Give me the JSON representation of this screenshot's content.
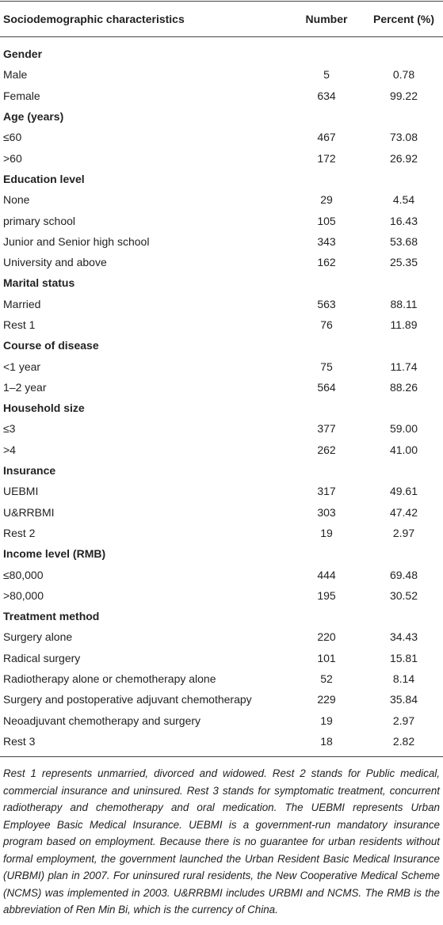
{
  "table": {
    "header": [
      "Sociodemographic characteristics",
      "Number",
      "Percent (%)"
    ],
    "sections": [
      {
        "title": "Gender",
        "rows": [
          [
            "Male",
            "5",
            "0.78"
          ],
          [
            "Female",
            "634",
            "99.22"
          ]
        ]
      },
      {
        "title": "Age (years)",
        "rows": [
          [
            "≤60",
            "467",
            "73.08"
          ],
          [
            ">60",
            "172",
            "26.92"
          ]
        ]
      },
      {
        "title": "Education level",
        "rows": [
          [
            "None",
            "29",
            "4.54"
          ],
          [
            "primary school",
            "105",
            "16.43"
          ],
          [
            "Junior and Senior high school",
            "343",
            "53.68"
          ],
          [
            "University and above",
            "162",
            "25.35"
          ]
        ]
      },
      {
        "title": "Marital status",
        "rows": [
          [
            "Married",
            "563",
            "88.11"
          ],
          [
            "Rest 1",
            "76",
            "11.89"
          ]
        ]
      },
      {
        "title": "Course of disease",
        "rows": [
          [
            "<1 year",
            "75",
            "11.74"
          ],
          [
            "1–2 year",
            "564",
            "88.26"
          ]
        ]
      },
      {
        "title": "Household size",
        "rows": [
          [
            "≤3",
            "377",
            "59.00"
          ],
          [
            ">4",
            "262",
            "41.00"
          ]
        ]
      },
      {
        "title": "Insurance",
        "rows": [
          [
            "UEBMI",
            "317",
            "49.61"
          ],
          [
            "U&RRBMI",
            "303",
            "47.42"
          ],
          [
            "Rest 2",
            "19",
            "2.97"
          ]
        ]
      },
      {
        "title": "Income level (RMB)",
        "rows": [
          [
            "≤80,000",
            "444",
            "69.48"
          ],
          [
            ">80,000",
            "195",
            "30.52"
          ]
        ]
      },
      {
        "title": "Treatment method",
        "rows": [
          [
            "Surgery alone",
            "220",
            "34.43"
          ],
          [
            "Radical surgery",
            "101",
            "15.81"
          ],
          [
            "Radiotherapy alone or chemotherapy alone",
            "52",
            "8.14"
          ],
          [
            "Surgery and postoperative adjuvant chemotherapy",
            "229",
            "35.84"
          ],
          [
            "Neoadjuvant chemotherapy and surgery",
            "19",
            "2.97"
          ],
          [
            "Rest 3",
            "18",
            "2.82"
          ]
        ]
      }
    ]
  },
  "footnote": "Rest 1 represents unmarried, divorced and widowed. Rest 2 stands for Public medical, commercial insurance and uninsured. Rest 3 stands for symptomatic treatment, concurrent radiotherapy and chemotherapy and oral medication. The UEBMI represents Urban Employee Basic Medical Insurance. UEBMI is a government-run mandatory insurance program based on employment. Because there is no guarantee for urban residents without formal employment, the government launched the Urban Resident Basic Medical Insurance (URBMI) plan in 2007. For uninsured rural residents, the New Cooperative Medical Scheme (NCMS) was implemented in 2003. U&RRBMI includes URBMI and NCMS. The RMB is the abbreviation of Ren Min Bi, which is the currency of China."
}
